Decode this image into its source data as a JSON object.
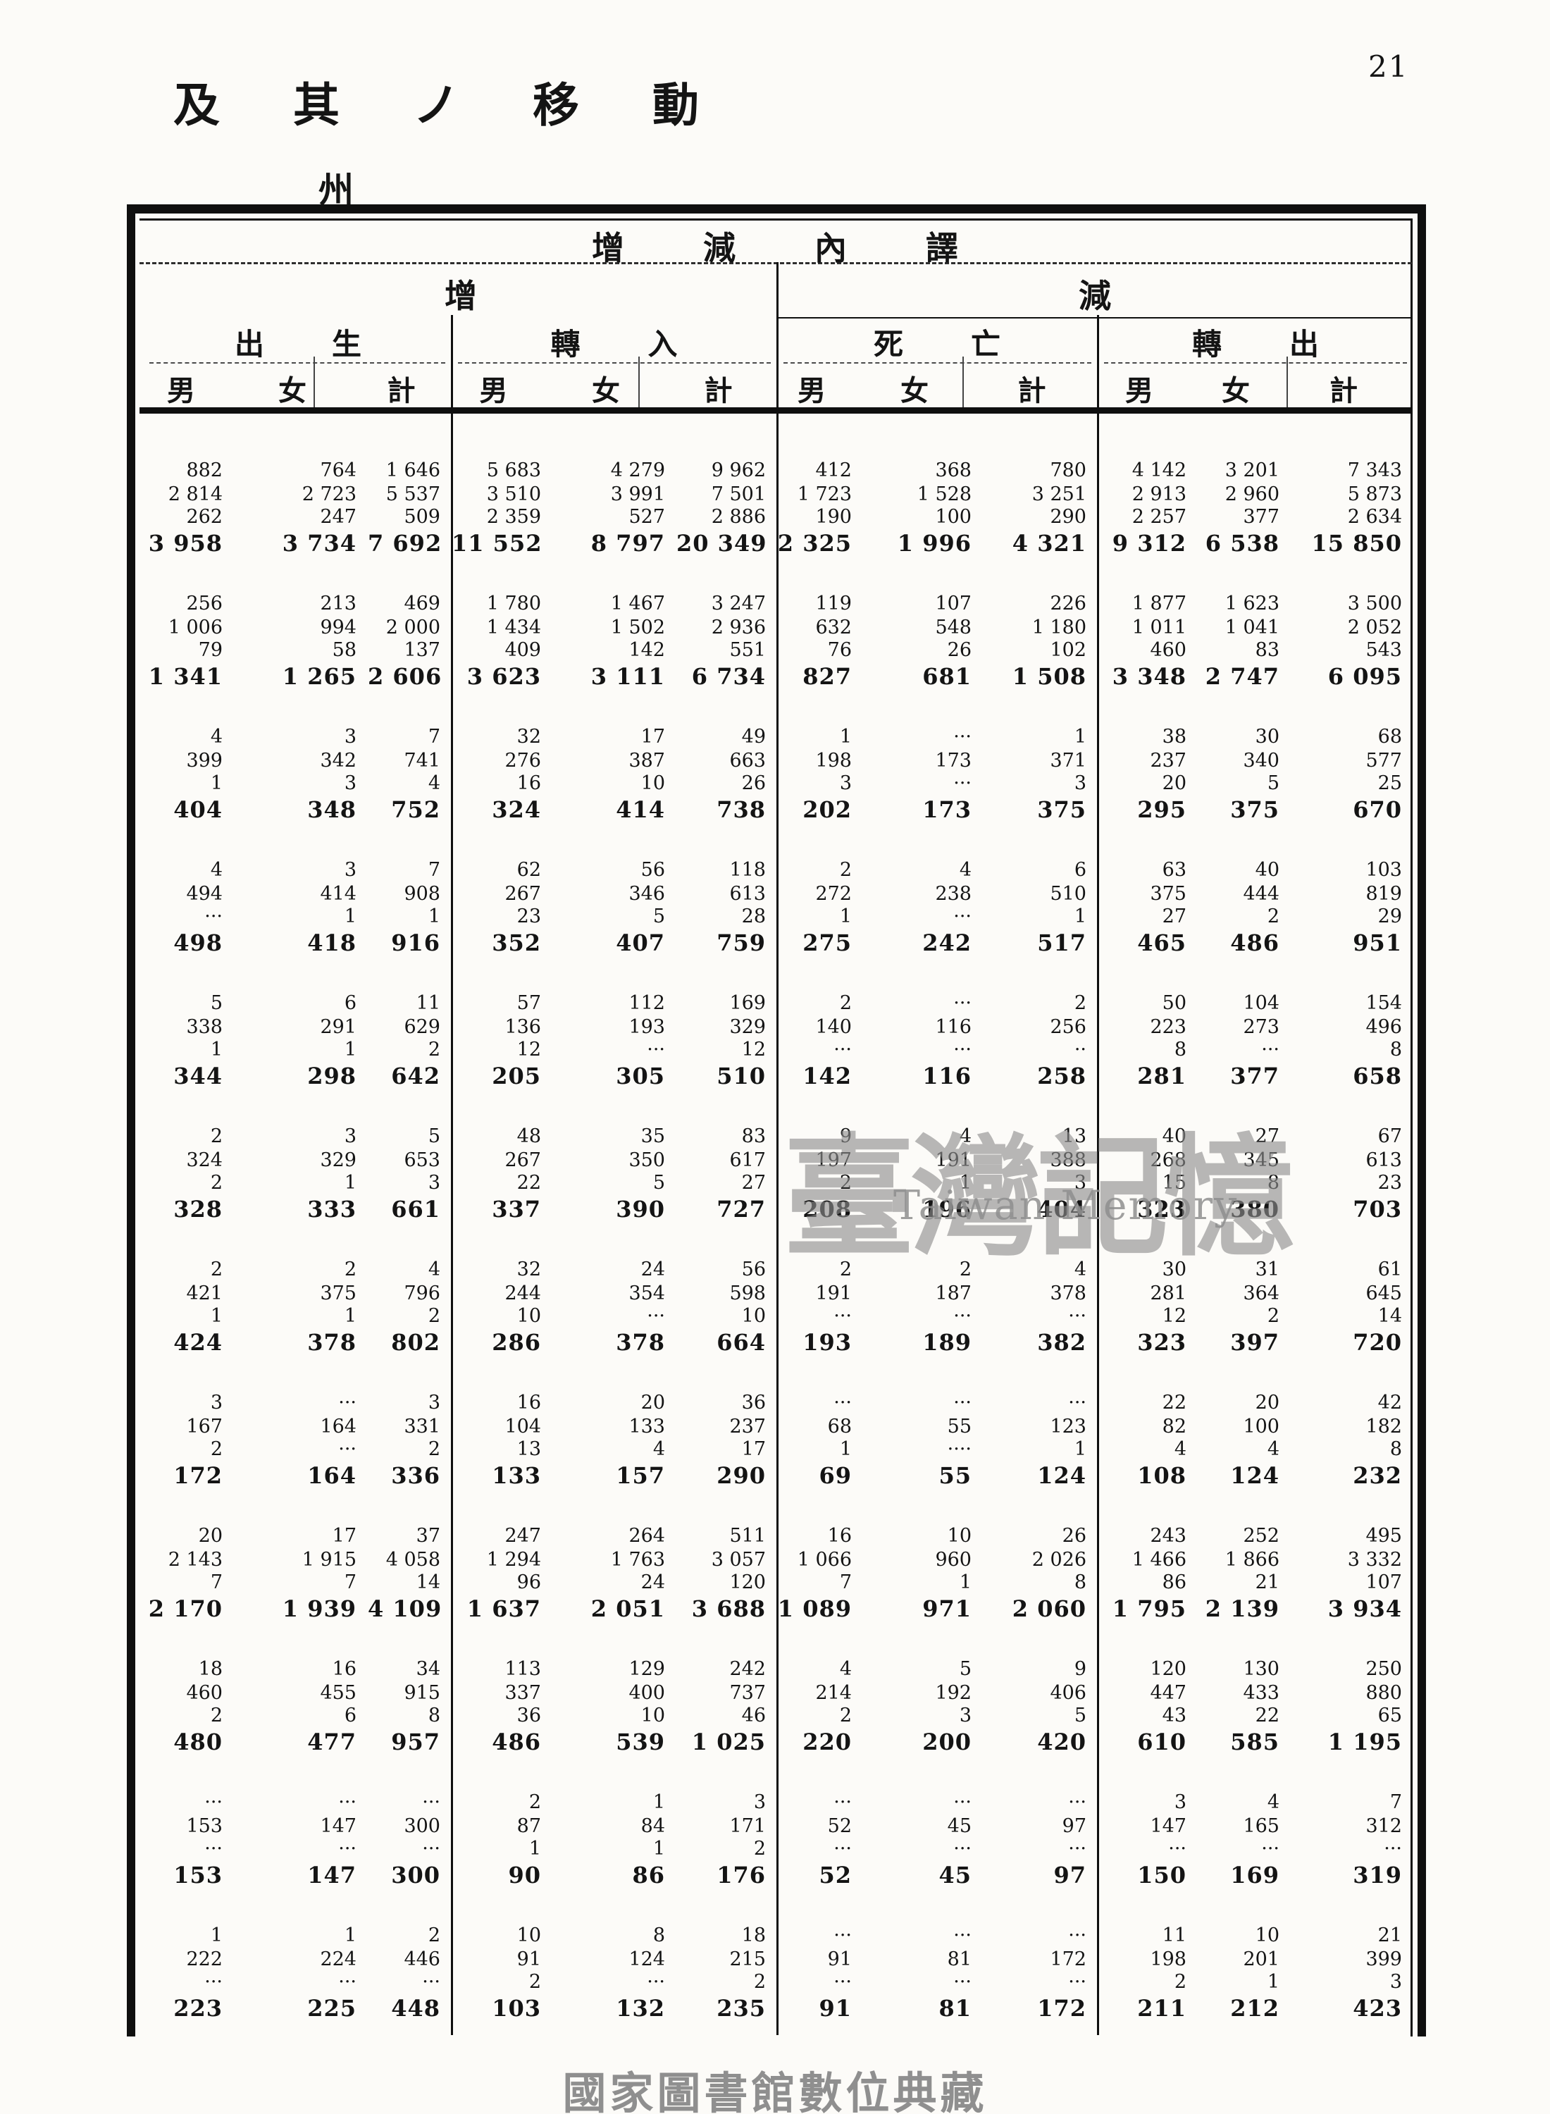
{
  "page": {
    "number": "21",
    "title": "及其ノ移動",
    "region_label": "州",
    "footer": "國家圖書館數位典藏"
  },
  "watermark": {
    "cjk": "臺灣記憶",
    "latin": "Taiwan Memory"
  },
  "colors": {
    "paper": "#fcfbf8",
    "ink": "#141414",
    "border": "#0f0f0f",
    "watermark_grey": "#8d8d8d",
    "footer_grey": "#8f8f8f"
  },
  "table": {
    "header": {
      "span_title": "增減內譯",
      "increase": "增",
      "decrease": "減",
      "groups": [
        "出生",
        "轉入",
        "死亡",
        "轉出"
      ],
      "subcols": [
        "男",
        "女",
        "計"
      ]
    },
    "groups": [
      [
        [
          "882",
          "764",
          "1 646",
          "5 683",
          "4 279",
          "9 962",
          "412",
          "368",
          "780",
          "4 142",
          "3 201",
          "7 343"
        ],
        [
          "2 814",
          "2 723",
          "5 537",
          "3 510",
          "3 991",
          "7 501",
          "1 723",
          "1 528",
          "3 251",
          "2 913",
          "2 960",
          "5 873"
        ],
        [
          "262",
          "247",
          "509",
          "2 359",
          "527",
          "2 886",
          "190",
          "100",
          "290",
          "2 257",
          "377",
          "2 634"
        ],
        [
          "3 958",
          "3 734",
          "7 692",
          "11 552",
          "8 797",
          "20 349",
          "2 325",
          "1 996",
          "4 321",
          "9 312",
          "6 538",
          "15 850"
        ]
      ],
      [
        [
          "256",
          "213",
          "469",
          "1 780",
          "1 467",
          "3 247",
          "119",
          "107",
          "226",
          "1 877",
          "1 623",
          "3 500"
        ],
        [
          "1 006",
          "994",
          "2 000",
          "1 434",
          "1 502",
          "2 936",
          "632",
          "548",
          "1 180",
          "1 011",
          "1 041",
          "2 052"
        ],
        [
          "79",
          "58",
          "137",
          "409",
          "142",
          "551",
          "76",
          "26",
          "102",
          "460",
          "83",
          "543"
        ],
        [
          "1 341",
          "1 265",
          "2 606",
          "3 623",
          "3 111",
          "6 734",
          "827",
          "681",
          "1 508",
          "3 348",
          "2 747",
          "6 095"
        ]
      ],
      [
        [
          "4",
          "3",
          "7",
          "32",
          "17",
          "49",
          "1",
          "···",
          "1",
          "38",
          "30",
          "68"
        ],
        [
          "399",
          "342",
          "741",
          "276",
          "387",
          "663",
          "198",
          "173",
          "371",
          "237",
          "340",
          "577"
        ],
        [
          "1",
          "3",
          "4",
          "16",
          "10",
          "26",
          "3",
          "···",
          "3",
          "20",
          "5",
          "25"
        ],
        [
          "404",
          "348",
          "752",
          "324",
          "414",
          "738",
          "202",
          "173",
          "375",
          "295",
          "375",
          "670"
        ]
      ],
      [
        [
          "4",
          "3",
          "7",
          "62",
          "56",
          "118",
          "2",
          "4",
          "6",
          "63",
          "40",
          "103"
        ],
        [
          "494",
          "414",
          "908",
          "267",
          "346",
          "613",
          "272",
          "238",
          "510",
          "375",
          "444",
          "819"
        ],
        [
          "···",
          "1",
          "1",
          "23",
          "5",
          "28",
          "1",
          "···",
          "1",
          "27",
          "2",
          "29"
        ],
        [
          "498",
          "418",
          "916",
          "352",
          "407",
          "759",
          "275",
          "242",
          "517",
          "465",
          "486",
          "951"
        ]
      ],
      [
        [
          "5",
          "6",
          "11",
          "57",
          "112",
          "169",
          "2",
          "···",
          "2",
          "50",
          "104",
          "154"
        ],
        [
          "338",
          "291",
          "629",
          "136",
          "193",
          "329",
          "140",
          "116",
          "256",
          "223",
          "273",
          "496"
        ],
        [
          "1",
          "1",
          "2",
          "12",
          "···",
          "12",
          "···",
          "···",
          "··",
          "8",
          "···",
          "8"
        ],
        [
          "344",
          "298",
          "642",
          "205",
          "305",
          "510",
          "142",
          "116",
          "258",
          "281",
          "377",
          "658"
        ]
      ],
      [
        [
          "2",
          "3",
          "5",
          "48",
          "35",
          "83",
          "9",
          "4",
          "13",
          "40",
          "27",
          "67"
        ],
        [
          "324",
          "329",
          "653",
          "267",
          "350",
          "617",
          "197",
          "191",
          "388",
          "268",
          "345",
          "613"
        ],
        [
          "2",
          "1",
          "3",
          "22",
          "5",
          "27",
          "2",
          "1",
          "3",
          "15",
          "8",
          "23"
        ],
        [
          "328",
          "333",
          "661",
          "337",
          "390",
          "727",
          "208",
          "196",
          "404",
          "323",
          "380",
          "703"
        ]
      ],
      [
        [
          "2",
          "2",
          "4",
          "32",
          "24",
          "56",
          "2",
          "2",
          "4",
          "30",
          "31",
          "61"
        ],
        [
          "421",
          "375",
          "796",
          "244",
          "354",
          "598",
          "191",
          "187",
          "378",
          "281",
          "364",
          "645"
        ],
        [
          "1",
          "1",
          "2",
          "10",
          "···",
          "10",
          "···",
          "···",
          "···",
          "12",
          "2",
          "14"
        ],
        [
          "424",
          "378",
          "802",
          "286",
          "378",
          "664",
          "193",
          "189",
          "382",
          "323",
          "397",
          "720"
        ]
      ],
      [
        [
          "3",
          "···",
          "3",
          "16",
          "20",
          "36",
          "···",
          "···",
          "···",
          "22",
          "20",
          "42"
        ],
        [
          "167",
          "164",
          "331",
          "104",
          "133",
          "237",
          "68",
          "55",
          "123",
          "82",
          "100",
          "182"
        ],
        [
          "2",
          "···",
          "2",
          "13",
          "4",
          "17",
          "1",
          "····",
          "1",
          "4",
          "4",
          "8"
        ],
        [
          "172",
          "164",
          "336",
          "133",
          "157",
          "290",
          "69",
          "55",
          "124",
          "108",
          "124",
          "232"
        ]
      ],
      [
        [
          "20",
          "17",
          "37",
          "247",
          "264",
          "511",
          "16",
          "10",
          "26",
          "243",
          "252",
          "495"
        ],
        [
          "2 143",
          "1 915",
          "4 058",
          "1 294",
          "1 763",
          "3 057",
          "1 066",
          "960",
          "2 026",
          "1 466",
          "1 866",
          "3 332"
        ],
        [
          "7",
          "7",
          "14",
          "96",
          "24",
          "120",
          "7",
          "1",
          "8",
          "86",
          "21",
          "107"
        ],
        [
          "2 170",
          "1 939",
          "4 109",
          "1 637",
          "2 051",
          "3 688",
          "1 089",
          "971",
          "2 060",
          "1 795",
          "2 139",
          "3 934"
        ]
      ],
      [
        [
          "18",
          "16",
          "34",
          "113",
          "129",
          "242",
          "4",
          "5",
          "9",
          "120",
          "130",
          "250"
        ],
        [
          "460",
          "455",
          "915",
          "337",
          "400",
          "737",
          "214",
          "192",
          "406",
          "447",
          "433",
          "880"
        ],
        [
          "2",
          "6",
          "8",
          "36",
          "10",
          "46",
          "2",
          "3",
          "5",
          "43",
          "22",
          "65"
        ],
        [
          "480",
          "477",
          "957",
          "486",
          "539",
          "1 025",
          "220",
          "200",
          "420",
          "610",
          "585",
          "1 195"
        ]
      ],
      [
        [
          "···",
          "···",
          "···",
          "2",
          "1",
          "3",
          "···",
          "···",
          "···",
          "3",
          "4",
          "7"
        ],
        [
          "153",
          "147",
          "300",
          "87",
          "84",
          "171",
          "52",
          "45",
          "97",
          "147",
          "165",
          "312"
        ],
        [
          "···",
          "···",
          "···",
          "1",
          "1",
          "2",
          "···",
          "···",
          "···",
          "···",
          "···",
          "···"
        ],
        [
          "153",
          "147",
          "300",
          "90",
          "86",
          "176",
          "52",
          "45",
          "97",
          "150",
          "169",
          "319"
        ]
      ],
      [
        [
          "1",
          "1",
          "2",
          "10",
          "8",
          "18",
          "···",
          "···",
          "···",
          "11",
          "10",
          "21"
        ],
        [
          "222",
          "224",
          "446",
          "91",
          "124",
          "215",
          "91",
          "81",
          "172",
          "198",
          "201",
          "399"
        ],
        [
          "···",
          "···",
          "···",
          "2",
          "···",
          "2",
          "···",
          "···",
          "···",
          "2",
          "1",
          "3"
        ],
        [
          "223",
          "225",
          "448",
          "103",
          "132",
          "235",
          "91",
          "81",
          "172",
          "211",
          "212",
          "423"
        ]
      ]
    ]
  }
}
